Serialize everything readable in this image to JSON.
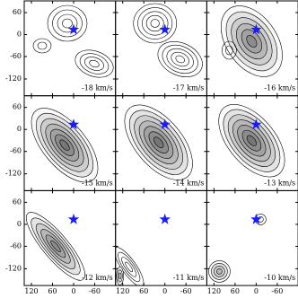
{
  "panels": [
    {
      "label": "-18 km/s"
    },
    {
      "label": "-17 km/s"
    },
    {
      "label": "-16 km/s"
    },
    {
      "label": "-15 km/s"
    },
    {
      "label": "-14 km/s"
    },
    {
      "label": "-13 km/s"
    },
    {
      "label": "-12 km/s"
    },
    {
      "label": "-11 km/s"
    },
    {
      "label": "-10 km/s"
    }
  ],
  "x_axis": {
    "ticks": [
      "120",
      "60",
      "0",
      "-60"
    ]
  },
  "y_axis": {
    "ticks": [
      "60",
      "0",
      "-60",
      "-120"
    ]
  }
}
